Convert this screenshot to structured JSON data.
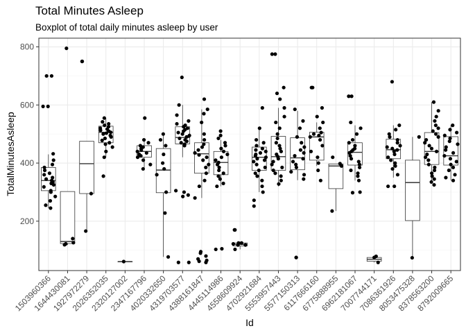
{
  "chart_data": {
    "type": "boxplot",
    "title": "Total Minutes Asleep",
    "subtitle": "Boxplot of total daily minutes asleep by user",
    "xlabel": "Id",
    "ylabel": "TotalMinutesAsleep",
    "ylim": [
      30,
      830
    ],
    "yticks": [
      200,
      400,
      600,
      800
    ],
    "grid": true,
    "categories": [
      "1503960366",
      "1644430081",
      "1927972279",
      "2026352035",
      "2320127002",
      "2347167796",
      "4020332650",
      "4319703577",
      "4388161847",
      "4445114986",
      "4558609924",
      "4702921684",
      "5553957443",
      "5577150313",
      "6117666160",
      "6775888955",
      "6962181067",
      "7007744171",
      "7086361926",
      "8053475328",
      "8378563200",
      "8792009665"
    ],
    "boxes": [
      {
        "q1": 305,
        "median": 340,
        "q3": 385,
        "lower": 245,
        "upper": 430
      },
      {
        "q1": 123,
        "median": 130,
        "q3": 302,
        "lower": 119,
        "upper": 302
      },
      {
        "q1": 295,
        "median": 398,
        "q3": 475,
        "lower": 166,
        "upper": 475
      },
      {
        "q1": 470,
        "median": 506,
        "q3": 527,
        "lower": 420,
        "upper": 555
      },
      {
        "q1": 61,
        "median": 61,
        "q3": 61,
        "lower": 61,
        "upper": 61
      },
      {
        "q1": 420,
        "median": 440,
        "q3": 460,
        "lower": 380,
        "upper": 480
      },
      {
        "q1": 298,
        "median": 376,
        "q3": 450,
        "lower": 77,
        "upper": 500
      },
      {
        "q1": 466,
        "median": 488,
        "q3": 525,
        "lower": 420,
        "upper": 600
      },
      {
        "q1": 365,
        "median": 432,
        "q3": 470,
        "lower": 280,
        "upper": 585
      },
      {
        "q1": 360,
        "median": 402,
        "q3": 440,
        "lower": 320,
        "upper": 480
      },
      {
        "q1": 115,
        "median": 120,
        "q3": 125,
        "lower": 103,
        "upper": 125
      },
      {
        "q1": 375,
        "median": 420,
        "q3": 455,
        "lower": 300,
        "upper": 520
      },
      {
        "q1": 375,
        "median": 422,
        "q3": 492,
        "lower": 320,
        "upper": 590
      },
      {
        "q1": 377,
        "median": 418,
        "q3": 487,
        "lower": 341,
        "upper": 580
      },
      {
        "q1": 410,
        "median": 490,
        "q3": 506,
        "lower": 390,
        "upper": 540
      },
      {
        "q1": 312,
        "median": 390,
        "q3": 397,
        "lower": 235,
        "upper": 397
      },
      {
        "q1": 393,
        "median": 437,
        "q3": 470,
        "lower": 340,
        "upper": 530
      },
      {
        "q1": 62,
        "median": 69,
        "q3": 75,
        "lower": 58,
        "upper": 79
      },
      {
        "q1": 415,
        "median": 446,
        "q3": 482,
        "lower": 350,
        "upper": 530
      },
      {
        "q1": 202,
        "median": 333,
        "q3": 410,
        "lower": 74,
        "upper": 490
      },
      {
        "q1": 395,
        "median": 440,
        "q3": 505,
        "lower": 335,
        "upper": 610
      },
      {
        "q1": 393,
        "median": 425,
        "q3": 491,
        "lower": 340,
        "upper": 530
      }
    ],
    "points": [
      [
        245,
        255,
        270,
        285,
        300,
        305,
        318,
        325,
        330,
        335,
        340,
        345,
        350,
        360,
        365,
        375,
        385,
        395,
        410,
        432,
        595,
        595,
        700,
        700
      ],
      [
        119,
        122,
        126,
        140,
        795
      ],
      [
        166,
        295,
        750,
        750
      ],
      [
        355,
        420,
        440,
        455,
        465,
        470,
        478,
        485,
        490,
        495,
        500,
        503,
        506,
        510,
        513,
        517,
        520,
        525,
        530,
        535,
        542,
        555
      ],
      [
        61
      ],
      [
        380,
        395,
        410,
        420,
        425,
        430,
        435,
        440,
        445,
        450,
        455,
        460,
        470,
        480,
        555
      ],
      [
        77,
        228,
        300,
        360,
        380,
        400,
        430,
        460,
        480,
        500
      ],
      [
        58,
        58,
        285,
        290,
        300,
        305,
        460,
        465,
        470,
        475,
        480,
        485,
        490,
        495,
        500,
        505,
        510,
        515,
        520,
        525,
        530,
        535,
        545,
        565,
        600,
        695
      ],
      [
        58,
        62,
        65,
        70,
        80,
        90,
        95,
        280,
        320,
        340,
        365,
        385,
        395,
        410,
        420,
        428,
        435,
        445,
        455,
        465,
        480,
        500,
        540,
        570,
        585,
        620
      ],
      [
        103,
        105,
        320,
        330,
        345,
        355,
        365,
        375,
        385,
        395,
        402,
        410,
        420,
        430,
        440,
        450,
        460,
        470,
        485,
        495,
        510
      ],
      [
        103,
        118,
        118,
        122,
        125,
        125,
        170,
        170
      ],
      [
        252,
        272,
        300,
        320,
        340,
        355,
        365,
        375,
        385,
        395,
        405,
        410,
        415,
        420,
        425,
        430,
        435,
        440,
        445,
        450,
        460,
        470,
        480,
        520,
        590
      ],
      [
        328,
        340,
        355,
        365,
        375,
        385,
        395,
        405,
        415,
        422,
        430,
        440,
        450,
        460,
        470,
        485,
        500,
        520,
        540,
        560,
        590,
        620,
        640,
        660,
        775,
        775
      ],
      [
        75,
        75,
        345,
        360,
        370,
        385,
        395,
        405,
        415,
        425,
        435,
        445,
        455,
        470,
        490,
        520,
        545,
        585
      ],
      [
        340,
        375,
        400,
        420,
        440,
        460,
        480,
        490,
        495,
        500,
        505,
        520,
        540,
        560,
        590,
        660,
        660
      ],
      [
        235,
        390,
        398,
        420
      ],
      [
        298,
        300,
        340,
        355,
        365,
        375,
        385,
        395,
        405,
        415,
        425,
        435,
        440,
        445,
        450,
        460,
        470,
        480,
        500,
        520,
        540,
        630,
        630
      ],
      [
        58,
        75,
        79
      ],
      [
        320,
        320,
        360,
        380,
        390,
        400,
        410,
        420,
        430,
        440,
        445,
        450,
        455,
        460,
        470,
        480,
        490,
        500,
        515,
        530,
        680
      ],
      [
        74,
        490
      ],
      [
        325,
        335,
        345,
        355,
        365,
        375,
        385,
        395,
        410,
        420,
        430,
        440,
        450,
        460,
        470,
        480,
        490,
        500,
        510,
        520,
        530,
        545,
        560,
        580,
        610
      ],
      [
        340,
        350,
        360,
        375,
        385,
        395,
        405,
        415,
        425,
        435,
        445,
        455,
        465,
        475,
        485,
        495,
        505,
        515,
        530
      ]
    ],
    "colors": {
      "points": "#000000",
      "box": "#333333",
      "panel_border": "#333333",
      "grid_major": "#ebebeb",
      "grid_minor": "#f5f5f5"
    }
  }
}
